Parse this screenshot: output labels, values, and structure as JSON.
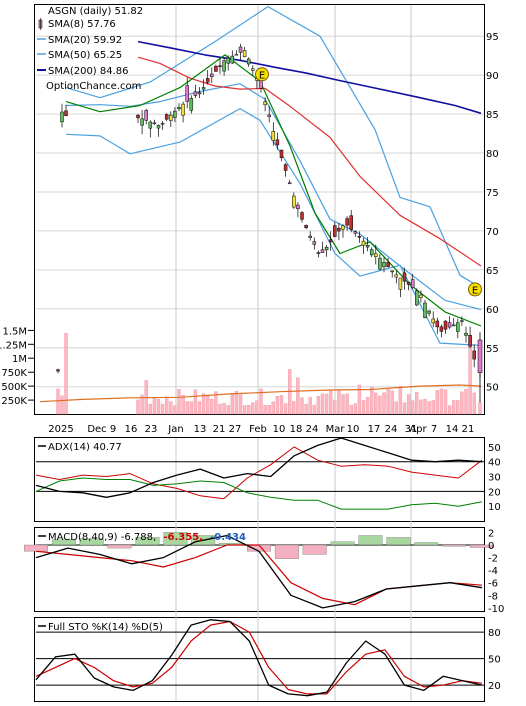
{
  "chart_data": [
    {
      "panel": "price",
      "type": "line",
      "title": "ASGN (daily) 51.82",
      "watermark": "OptionChance.com",
      "legend": [
        {
          "label": "SMA(8) 57.76",
          "color": "#008000",
          "kind": "candle"
        },
        {
          "label": "SMA(20) 59.92",
          "color": "#4aa0e0",
          "kind": "line"
        },
        {
          "label": "SMA(50) 65.25",
          "color": "#e03030",
          "kind": "line"
        },
        {
          "label": "SMA(200) 84.86",
          "color": "#1010a0",
          "kind": "line"
        }
      ],
      "y_ticks": [
        "95",
        "90",
        "85",
        "80",
        "75",
        "70",
        "65",
        "60",
        "55",
        "50"
      ],
      "ylim": [
        46.5,
        99
      ],
      "x_labels": [
        "2025",
        "Dec",
        "9",
        "16",
        "23",
        "Jan",
        "13",
        "21",
        "27",
        "Feb",
        "10",
        "18",
        "24",
        "Mar",
        "10",
        "17",
        "24",
        "31",
        "Apr",
        "7",
        "14",
        "21"
      ],
      "earnings_markers": [
        {
          "label": "E",
          "date": "Feb 3",
          "value": 90.1
        },
        {
          "label": "E",
          "date": "Apr 23",
          "value": 62.5
        }
      ],
      "sma200": [
        94.3,
        93.5,
        92.6,
        91.9,
        91.0,
        90.3,
        89.3,
        88.2,
        87.1,
        86.1,
        85.1
      ],
      "sma50": [
        92.3,
        91.5,
        89.6,
        88.6,
        88.2,
        88.3,
        86.0,
        82.0,
        77.0,
        72.0,
        69.0,
        65.5
      ],
      "sma20_mid": [
        86.1,
        86.2,
        86.0,
        86.6,
        87.9,
        88.9,
        86.9,
        79.0,
        71.5,
        69.6,
        65.5,
        61.1,
        59.9
      ],
      "bb_upper": [
        88.4,
        87.1,
        89.1,
        94.3,
        98.8,
        95.0,
        83.0,
        74.3,
        73.1,
        64.3,
        62.7
      ],
      "bb_lower": [
        82.4,
        82.2,
        79.9,
        81.4,
        85.7,
        84.2,
        76.1,
        67.1,
        64.2,
        65.6,
        55.6,
        55.3
      ],
      "sma8": [
        86.6,
        85.3,
        86.1,
        88.4,
        92.6,
        89.2,
        80.9,
        72.3,
        67.1,
        68.6,
        63.1,
        59.6,
        57.8
      ]
    },
    {
      "panel": "volume",
      "type": "bar",
      "y_ticks": [
        "1.5M",
        "1.25M",
        "1M",
        "750K",
        "500K",
        "250K"
      ],
      "ylim": [
        0,
        1650000
      ],
      "series_color": "#ffb6c1",
      "volume_ma": [
        220000,
        260000,
        290000,
        300000,
        360000,
        400000,
        430000,
        440000,
        500000,
        520000,
        500000
      ]
    },
    {
      "panel": "adx",
      "type": "line",
      "title": "ADX(14) 40.77",
      "y_ticks": [
        "50",
        "40",
        "30",
        "20",
        "10"
      ],
      "ylim": [
        0,
        56
      ],
      "adx": [
        24,
        20,
        19,
        16,
        19,
        26,
        31,
        35,
        29,
        32,
        30,
        44,
        51,
        56,
        51,
        46,
        41,
        40,
        41,
        40
      ],
      "plus_di": [
        20,
        27,
        29,
        28,
        28,
        24,
        25,
        27,
        26,
        19,
        16,
        14,
        14,
        8,
        8,
        8,
        11,
        12,
        10,
        13
      ],
      "minus_di": [
        31,
        28,
        31,
        30,
        32,
        25,
        22,
        17,
        15,
        29,
        38,
        50,
        41,
        37,
        38,
        37,
        33,
        31,
        29,
        41
      ]
    },
    {
      "panel": "macd",
      "type": "line",
      "title": "MACD(8,40,9) -6.788, -6.355, -0.434",
      "title_parts": [
        "MACD(8,40,9) -6.788,",
        "-6.355,",
        "-0.434"
      ],
      "title_colors": [
        "#000000",
        "#cc0000",
        "#1f5fbf"
      ],
      "y_ticks": [
        "2",
        "0",
        "-2",
        "-4",
        "-6",
        "-8",
        "-10"
      ],
      "ylim": [
        -10.5,
        2.7
      ],
      "macd": [
        -2,
        -0.5,
        -1.5,
        -3,
        -2,
        0.5,
        1.5,
        -1,
        -8,
        -10,
        -9,
        -7,
        -6.5,
        -6,
        -6.8
      ],
      "signal": [
        -1,
        -1.5,
        -2,
        -2.5,
        -3.5,
        -2,
        0,
        0,
        -6,
        -8.5,
        -9.5,
        -7,
        -6.5,
        -6,
        -6.4
      ],
      "histogram": [
        -1,
        0.8,
        1,
        -0.5,
        1.2,
        2,
        1.5,
        0.3,
        -1,
        -2.2,
        -1.5,
        0.5,
        1.5,
        1.2,
        0.4,
        -0.2,
        -0.4
      ]
    },
    {
      "panel": "stochastic",
      "type": "line",
      "title": "Full STO %K(14) %D(5)",
      "y_ticks": [
        "80",
        "50",
        "20"
      ],
      "ylim": [
        2,
        96
      ],
      "k": [
        26,
        52,
        55,
        28,
        18,
        14,
        25,
        54,
        88,
        94,
        92,
        70,
        20,
        10,
        8,
        12,
        45,
        70,
        55,
        20,
        14,
        30,
        25,
        20
      ],
      "d": [
        30,
        40,
        50,
        40,
        25,
        18,
        22,
        40,
        70,
        88,
        92,
        80,
        40,
        15,
        10,
        10,
        35,
        55,
        60,
        30,
        18,
        20,
        25,
        22
      ]
    }
  ]
}
